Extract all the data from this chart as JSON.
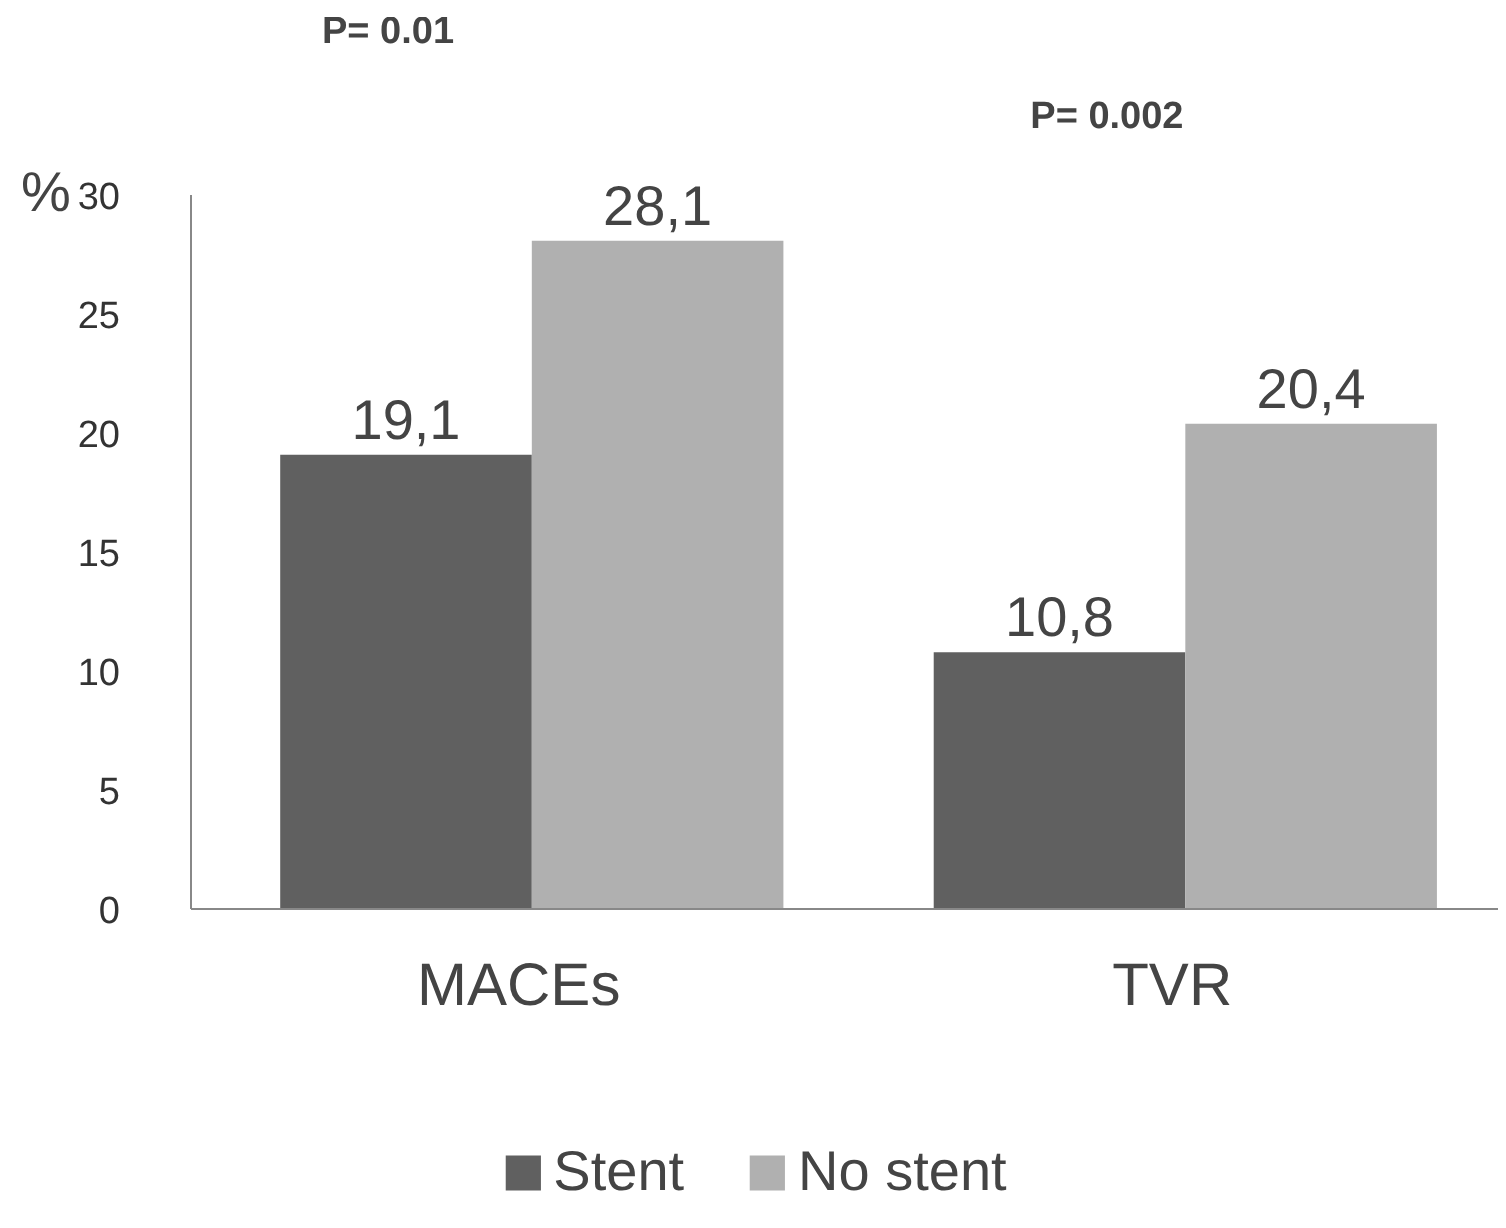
{
  "chart_data": {
    "type": "bar",
    "ylabel": "%",
    "categories": [
      "MACEs",
      "TVR"
    ],
    "series": [
      {
        "name": "Stent",
        "color": "#606060",
        "values": [
          19.1,
          10.8
        ],
        "value_labels": [
          "19,1",
          "10,8"
        ]
      },
      {
        "name": "No stent",
        "color": "#b0b0b0",
        "values": [
          28.1,
          20.4
        ],
        "value_labels": [
          "28,1",
          "20,4"
        ]
      }
    ],
    "ylim": [
      0,
      30
    ],
    "yticks": [
      0,
      5,
      10,
      15,
      20,
      25,
      30
    ],
    "grid": false,
    "legend": "bottom",
    "annotations": [
      "P= 0.01",
      "P= 0.002"
    ]
  }
}
